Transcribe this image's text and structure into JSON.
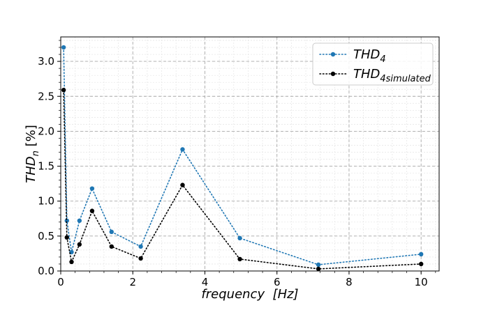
{
  "chart_data": {
    "type": "line",
    "title": "",
    "xlabel": "frequency  [Hz]",
    "ylabel": "THD_n [%]",
    "xlim": [
      0,
      10.5
    ],
    "ylim": [
      0,
      3.35
    ],
    "xticks": [
      0,
      2,
      4,
      6,
      8,
      10
    ],
    "yticks": [
      0.0,
      0.5,
      1.0,
      1.5,
      2.0,
      2.5,
      3.0
    ],
    "ytick_labels": [
      "0.0",
      "0.5",
      "1.0",
      "1.5",
      "2.0",
      "2.5",
      "3.0"
    ],
    "grid": true,
    "minor_grid": true,
    "legend_position": "top-right",
    "series": [
      {
        "name": "THD_4",
        "name_main": "THD",
        "name_sub": "4",
        "color": "#1f77b4",
        "x": [
          0.08,
          0.17,
          0.3,
          0.52,
          0.87,
          1.41,
          2.22,
          3.38,
          4.97,
          7.15,
          10.0
        ],
        "values": [
          3.2,
          0.72,
          0.27,
          0.72,
          1.18,
          0.56,
          0.35,
          1.74,
          0.47,
          0.09,
          0.24
        ]
      },
      {
        "name": "THD_4simulated",
        "name_main": "THD",
        "name_sub": "4simulated",
        "color": "#000000",
        "x": [
          0.08,
          0.17,
          0.3,
          0.52,
          0.87,
          1.41,
          2.22,
          3.38,
          4.97,
          7.15,
          10.0
        ],
        "values": [
          2.59,
          0.48,
          0.13,
          0.38,
          0.86,
          0.35,
          0.18,
          1.23,
          0.17,
          0.03,
          0.1
        ]
      }
    ]
  }
}
